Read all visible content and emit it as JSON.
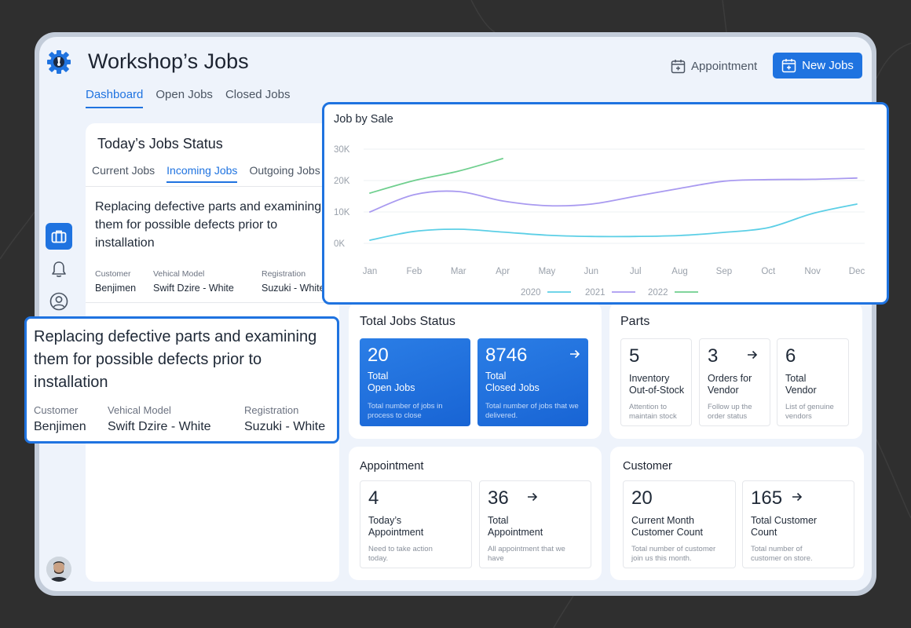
{
  "app": {
    "title": "Workshop’s Jobs",
    "tabs": [
      {
        "label": "Dashboard",
        "active": true
      },
      {
        "label": "Open Jobs",
        "active": false
      },
      {
        "label": "Closed Jobs",
        "active": false
      }
    ],
    "actions": {
      "appointment_label": "Appointment",
      "new_jobs_label": "New Jobs"
    },
    "accent_color": "#1f73e0"
  },
  "sidebar": {
    "icons": [
      "gear-logo-icon",
      "briefcase-icon",
      "bell-icon",
      "user-circle-icon"
    ],
    "avatar": "user-avatar"
  },
  "todays_jobs": {
    "title": "Today’s Jobs Status",
    "tabs": [
      {
        "label": "Current Jobs",
        "active": false
      },
      {
        "label": "Incoming Jobs",
        "active": true
      },
      {
        "label": "Outgoing Jobs",
        "active": false
      }
    ],
    "job": {
      "description": "Replacing defective parts and examining them for possible defects prior to installation",
      "customer_label": "Customer",
      "customer": "Benjimen",
      "model_label": "Vehical Model",
      "model": "Swift Dzire - White",
      "registration_label": "Registration",
      "registration": "Suzuki - White"
    }
  },
  "total_jobs_status": {
    "title": "Total Jobs Status",
    "open": {
      "value": "20",
      "label_line1": "Total",
      "label_line2": "Open Jobs",
      "desc": "Total number of jobs in process to close"
    },
    "closed": {
      "value": "8746",
      "label_line1": "Total",
      "label_line2": "Closed Jobs",
      "desc": "Total number of jobs that we delivered."
    }
  },
  "parts": {
    "title": "Parts",
    "items": [
      {
        "value": "5",
        "label_line1": "Inventory",
        "label_line2": "Out-of-Stock",
        "desc_line1": "Attention to",
        "desc_line2": "maintain stock"
      },
      {
        "value": "3",
        "label_line1": "Orders for",
        "label_line2": "Vendor",
        "desc_line1": "Follow up the",
        "desc_line2": "order status"
      },
      {
        "value": "6",
        "label_line1": "Total",
        "label_line2": "Vendor",
        "desc_line1": "List of genuine",
        "desc_line2": "vendors"
      }
    ]
  },
  "appointment": {
    "title": "Appointment",
    "items": [
      {
        "value": "4",
        "label_line1": "Today’s",
        "label_line2": "Appointment",
        "desc_line1": "Need to take action",
        "desc_line2": "today."
      },
      {
        "value": "36",
        "label_line1": "Total",
        "label_line2": "Appointment",
        "desc_line1": "All appointment that we",
        "desc_line2": "have"
      }
    ]
  },
  "customer": {
    "title": "Customer",
    "items": [
      {
        "value": "20",
        "label_line1": "Current Month",
        "label_line2": "Customer Count",
        "desc_line1": "Total number of customer",
        "desc_line2": "join us this month."
      },
      {
        "value": "165",
        "label_line1": "Total Customer",
        "label_line2": "Count",
        "desc_line1": "Total number of",
        "desc_line2": "customer on store."
      }
    ]
  },
  "chart_data": {
    "type": "line",
    "title": "Job by Sale",
    "categories": [
      "Jan",
      "Feb",
      "Mar",
      "Apr",
      "May",
      "Jun",
      "Jul",
      "Aug",
      "Sep",
      "Oct",
      "Nov",
      "Dec"
    ],
    "y_ticks": [
      "0K",
      "10K",
      "20K",
      "30K"
    ],
    "ylim": [
      0,
      30000
    ],
    "legend_position": "bottom-center",
    "grid": true,
    "series": [
      {
        "name": "2020",
        "color": "#5ccfe6",
        "values": [
          1000,
          3800,
          4500,
          3600,
          2600,
          2200,
          2200,
          2500,
          3500,
          5000,
          9500,
          12500
        ]
      },
      {
        "name": "2021",
        "color": "#a99af0",
        "values": [
          10000,
          15500,
          16500,
          13500,
          12000,
          12500,
          15000,
          17500,
          19800,
          20300,
          20400,
          20800
        ]
      },
      {
        "name": "2022",
        "color": "#6fcf8e",
        "values": [
          16000,
          20000,
          23000,
          27000,
          null,
          null,
          null,
          null,
          null,
          null,
          null,
          null
        ]
      }
    ]
  }
}
